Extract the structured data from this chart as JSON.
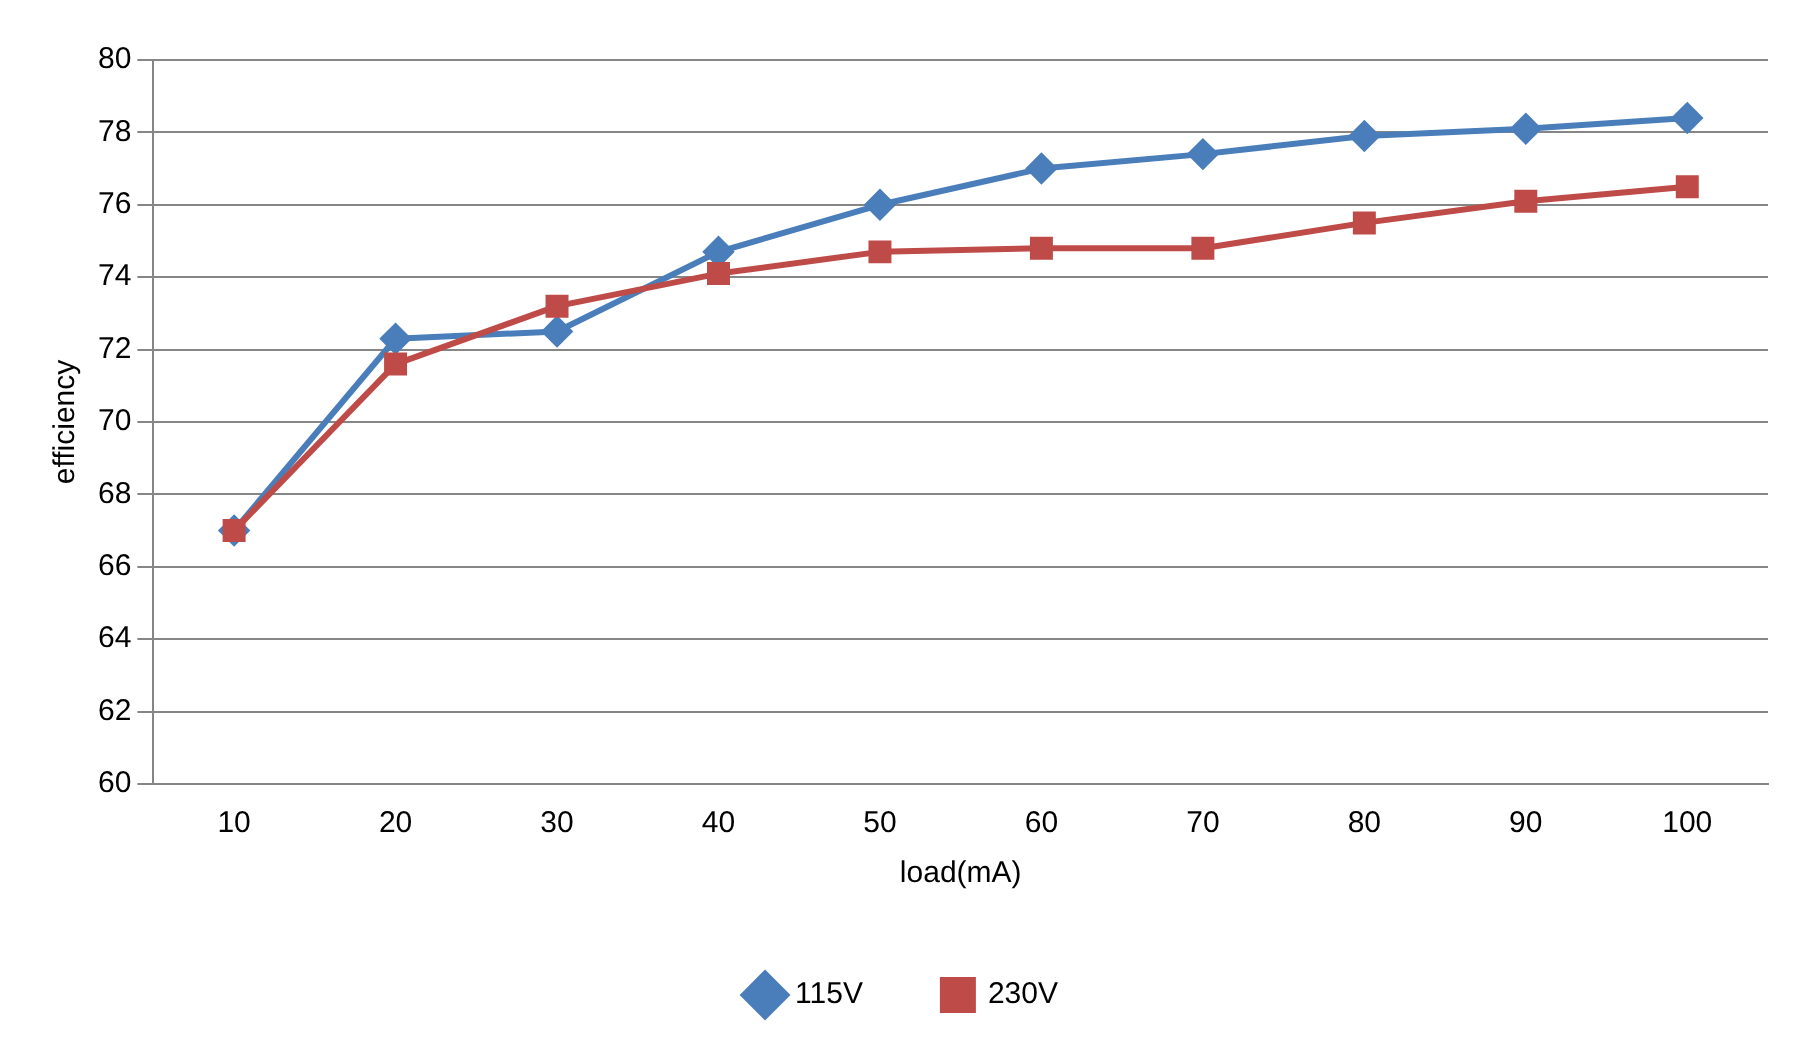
{
  "chart_data": {
    "type": "line",
    "xlabel": "load(mA)",
    "ylabel": "efficiency",
    "categories": [
      "10",
      "20",
      "30",
      "40",
      "50",
      "60",
      "70",
      "80",
      "90",
      "100"
    ],
    "series": [
      {
        "name": "115V",
        "color": "#4a7ebb",
        "marker": "diamond",
        "values": [
          67,
          72.3,
          72.5,
          74.7,
          76.0,
          77.0,
          77.4,
          77.9,
          78.1,
          78.4
        ]
      },
      {
        "name": "230V",
        "color": "#be4b48",
        "marker": "square",
        "values": [
          67,
          71.6,
          73.2,
          74.1,
          74.7,
          74.8,
          74.8,
          75.5,
          76.1,
          76.5
        ]
      }
    ],
    "ylim": [
      60,
      80
    ],
    "yticks": [
      60,
      62,
      64,
      66,
      68,
      70,
      72,
      74,
      76,
      78,
      80
    ],
    "grid": "y",
    "legend": "bottom",
    "line_style": "solid"
  }
}
